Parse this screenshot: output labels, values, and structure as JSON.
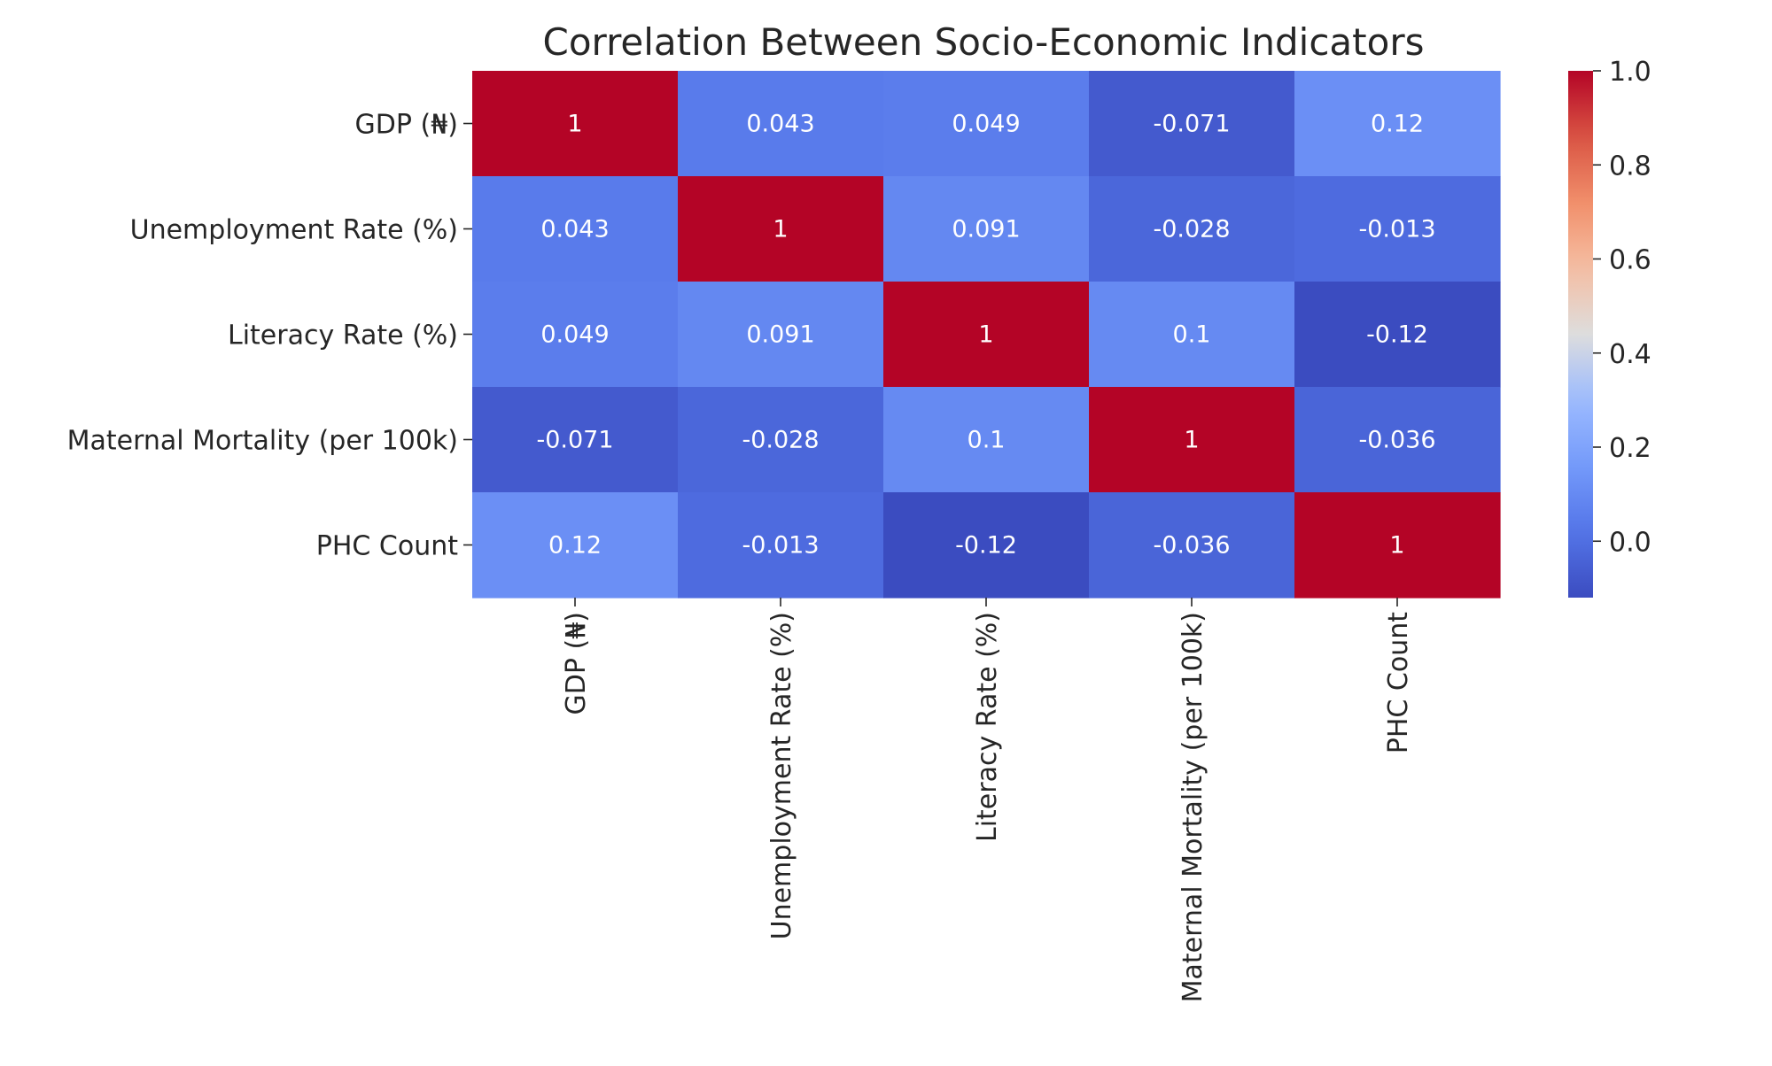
{
  "chart_data": {
    "type": "heatmap",
    "title": "Correlation Between Socio-Economic Indicators",
    "row_labels": [
      "GDP (₦)",
      "Unemployment Rate (%)",
      "Literacy Rate (%)",
      "Maternal Mortality (per 100k)",
      "PHC Count"
    ],
    "col_labels": [
      "GDP (₦)",
      "Unemployment Rate (%)",
      "Literacy Rate (%)",
      "Maternal Mortality (per 100k)",
      "PHC Count"
    ],
    "values": [
      [
        1,
        0.043,
        0.049,
        -0.071,
        0.12
      ],
      [
        0.043,
        1,
        0.091,
        -0.028,
        -0.013
      ],
      [
        0.049,
        0.091,
        1,
        0.1,
        -0.12
      ],
      [
        -0.071,
        -0.028,
        0.1,
        1,
        -0.036
      ],
      [
        0.12,
        -0.013,
        -0.12,
        -0.036,
        1
      ]
    ],
    "cell_labels": [
      [
        "1",
        "0.043",
        "0.049",
        "-0.071",
        "0.12"
      ],
      [
        "0.043",
        "1",
        "0.091",
        "-0.028",
        "-0.013"
      ],
      [
        "0.049",
        "0.091",
        "1",
        "0.1",
        "-0.12"
      ],
      [
        "-0.071",
        "-0.028",
        "0.1",
        "1",
        "-0.036"
      ],
      [
        "0.12",
        "-0.013",
        "-0.12",
        "-0.036",
        "1"
      ]
    ],
    "colormap": "coolwarm",
    "colorbar": {
      "vmin": -0.12,
      "vmax": 1.0,
      "ticks": [
        0.0,
        0.2,
        0.4,
        0.6,
        0.8,
        1.0
      ],
      "tick_labels": [
        "0.0",
        "0.2",
        "0.4",
        "0.6",
        "0.8",
        "1.0"
      ]
    }
  }
}
